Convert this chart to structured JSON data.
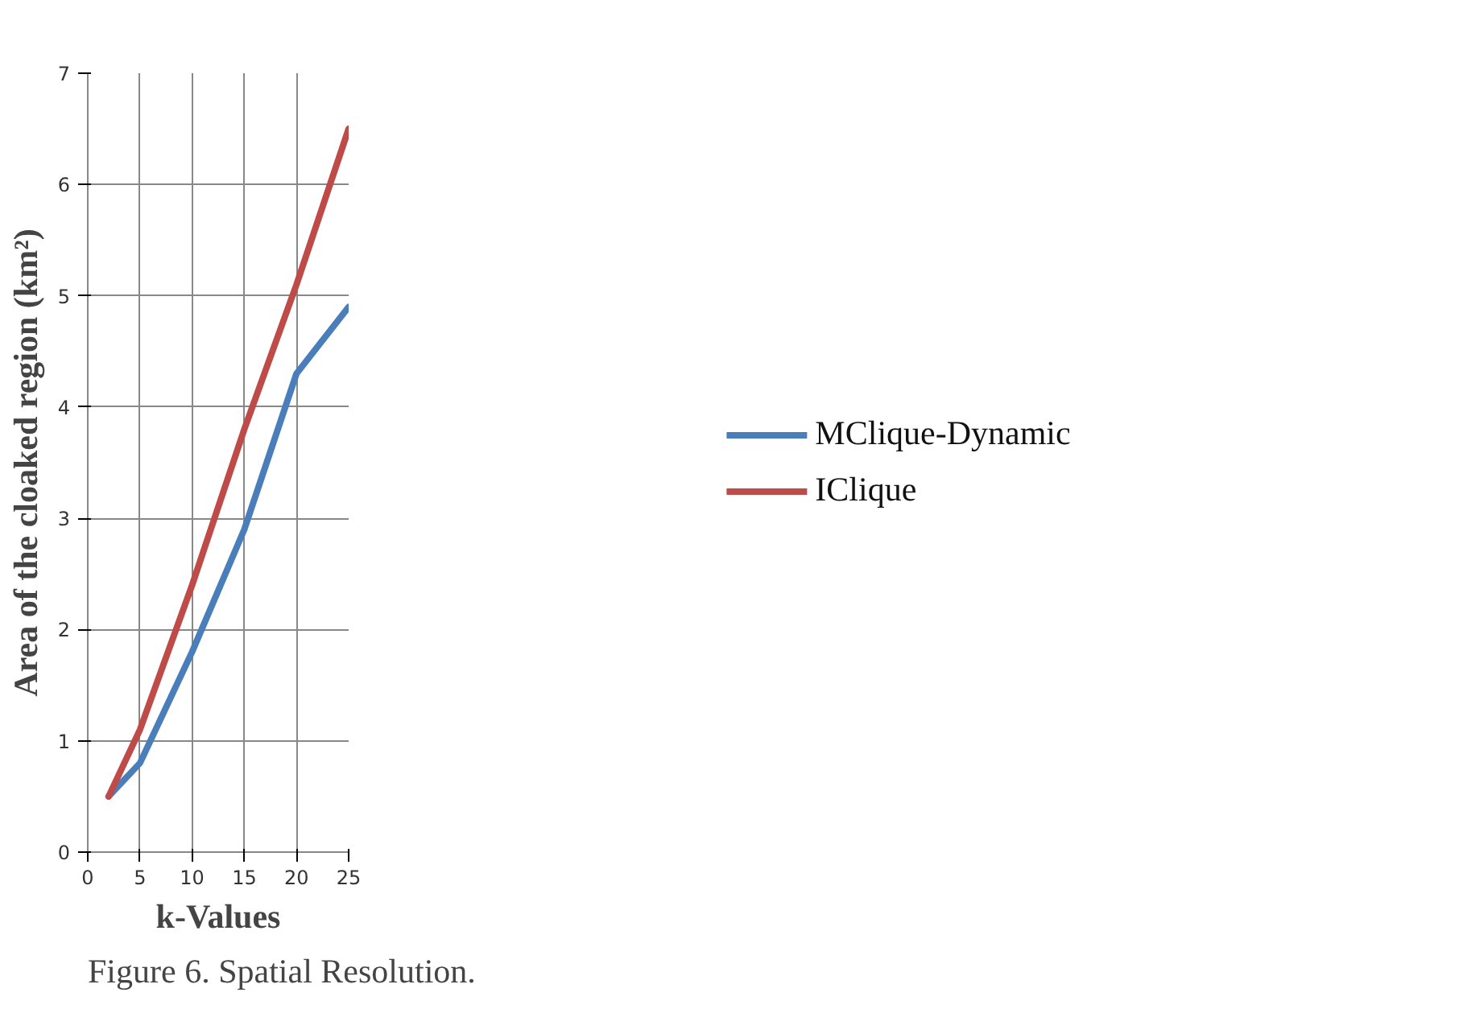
{
  "chart_data": {
    "type": "line",
    "xlabel": "k-Values",
    "ylabel": "Area of the cloaked region (km²)",
    "x": [
      2,
      5,
      10,
      15,
      20,
      25
    ],
    "series": [
      {
        "name": "MClique-Dynamic",
        "color": "#4a7ebb",
        "values": [
          0.5,
          0.8,
          1.8,
          2.9,
          4.3,
          4.9
        ]
      },
      {
        "name": "IClique",
        "color": "#be4b48",
        "values": [
          0.5,
          1.1,
          2.4,
          3.8,
          5.1,
          6.5
        ]
      }
    ],
    "xlim": [
      0,
      25
    ],
    "ylim": [
      0,
      7
    ],
    "xticks": [
      0,
      5,
      10,
      15,
      20,
      25
    ],
    "yticks": [
      0,
      1,
      2,
      3,
      4,
      5,
      6,
      7
    ],
    "grid": true,
    "legend": "right",
    "marker": "none",
    "line_style": "solid",
    "annotations": [
      "Figure 6. Spatial Resolution."
    ]
  }
}
